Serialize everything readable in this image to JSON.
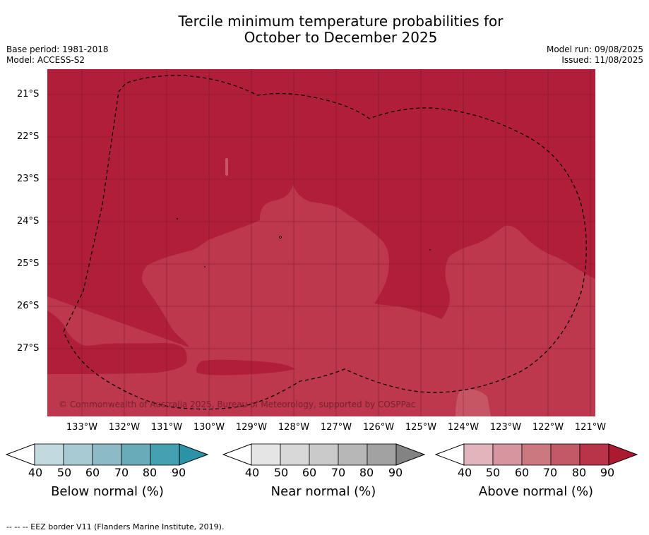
{
  "title_line1": "Tercile minimum temperature probabilities for",
  "title_line2": "October to December 2025",
  "meta": {
    "base_period": "Base period: 1981-2018",
    "model": "Model: ACCESS-S2",
    "model_run": "Model run: 09/08/2025",
    "issued": "Issued: 11/08/2025"
  },
  "copyright": "© Commonwealth of Australia 2025, Bureau of Meteorology, supported by COSPPac",
  "lat_labels": [
    "21°S",
    "22°S",
    "23°S",
    "24°S",
    "25°S",
    "26°S",
    "27°S"
  ],
  "lon_labels": [
    "133°W",
    "132°W",
    "131°W",
    "130°W",
    "129°W",
    "128°W",
    "127°W",
    "126°W",
    "125°W",
    "124°W",
    "123°W",
    "122°W",
    "121°W"
  ],
  "colors": {
    "above_80": "#b01e3a",
    "above_70": "#bd374d",
    "above_60": "#c75665",
    "below_scale": [
      "#c2d9df",
      "#a8cbd3",
      "#8cbbc6",
      "#6aabba",
      "#45a0b2",
      "#2b93a7"
    ],
    "near_scale": [
      "#e5e5e5",
      "#d8d8d8",
      "#cacaca",
      "#b7b7b7",
      "#a2a2a2",
      "#838383"
    ],
    "above_scale": [
      "#e2b5bd",
      "#d7969f",
      "#cc7880",
      "#c35966",
      "#b93448",
      "#ac1a32"
    ]
  },
  "legends": [
    {
      "title": "Below normal (%)",
      "ticks": [
        "40",
        "50",
        "60",
        "70",
        "80",
        "90"
      ]
    },
    {
      "title": "Near normal (%)",
      "ticks": [
        "40",
        "50",
        "60",
        "70",
        "80",
        "90"
      ]
    },
    {
      "title": "Above normal (%)",
      "ticks": [
        "40",
        "50",
        "60",
        "70",
        "80",
        "90"
      ]
    }
  ],
  "footnote": "--  --  -- EEZ border V11 (Flanders Marine Institute, 2019)."
}
